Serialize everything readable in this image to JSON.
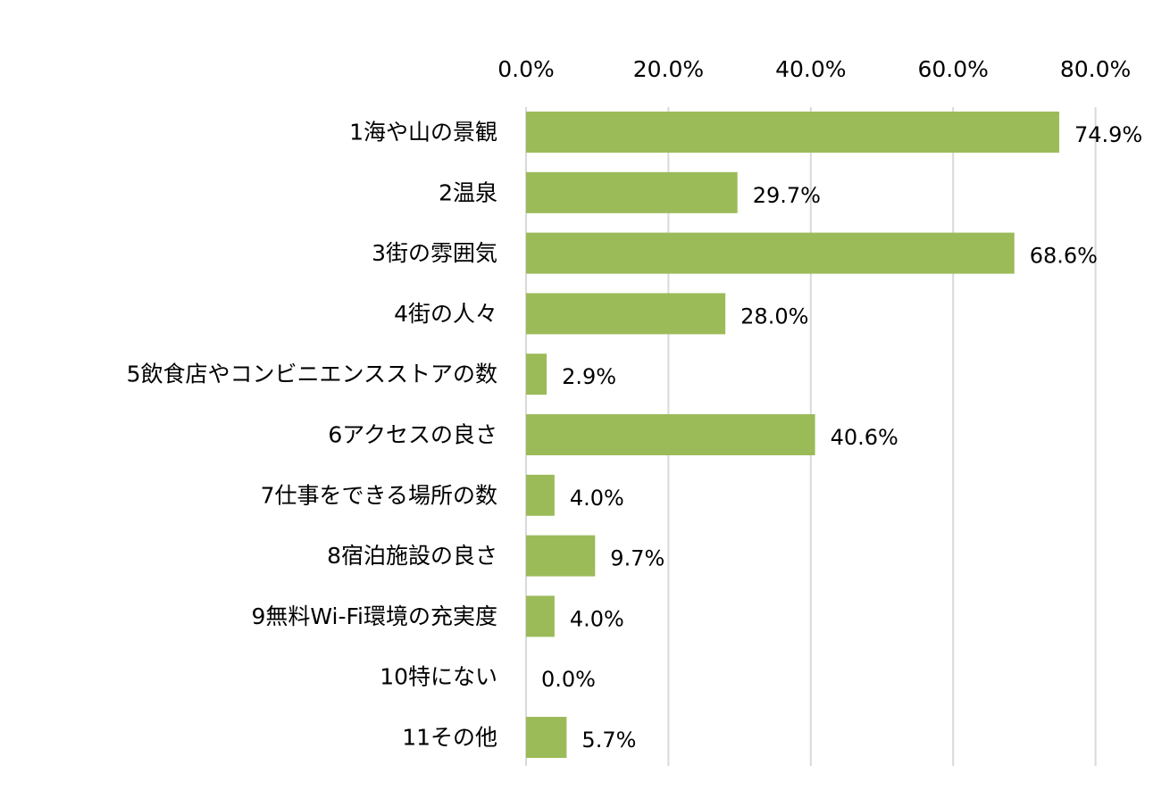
{
  "chart_data": {
    "type": "bar",
    "orientation": "horizontal",
    "categories": [
      "1海や山の景観",
      "2温泉",
      "3街の雰囲気",
      "4街の人々",
      "5飲食店やコンビニエンスストアの数",
      "6アクセスの良さ",
      "7仕事をできる場所の数",
      "8宿泊施設の良さ",
      "9無料Wi-Fi環境の充実度",
      "10特にない",
      "11その他"
    ],
    "values": [
      74.9,
      29.7,
      68.6,
      28.0,
      2.9,
      40.6,
      4.0,
      9.7,
      4.0,
      0.0,
      5.7
    ],
    "data_labels": [
      "74.9%",
      "29.7%",
      "68.6%",
      "28.0%",
      "2.9%",
      "40.6%",
      "4.0%",
      "9.7%",
      "4.0%",
      "0.0%",
      "5.7%"
    ],
    "x_axis_position": "top",
    "xlim": [
      0,
      80
    ],
    "x_ticks": [
      0,
      20,
      40,
      60,
      80
    ],
    "x_tick_labels": [
      "0.0%",
      "20.0%",
      "40.0%",
      "60.0%",
      "80.0%"
    ],
    "grid": true,
    "legend": "none",
    "colors": {
      "bar": "#9bbb59",
      "grid": "#d9d9d9",
      "text": "#000000"
    }
  }
}
